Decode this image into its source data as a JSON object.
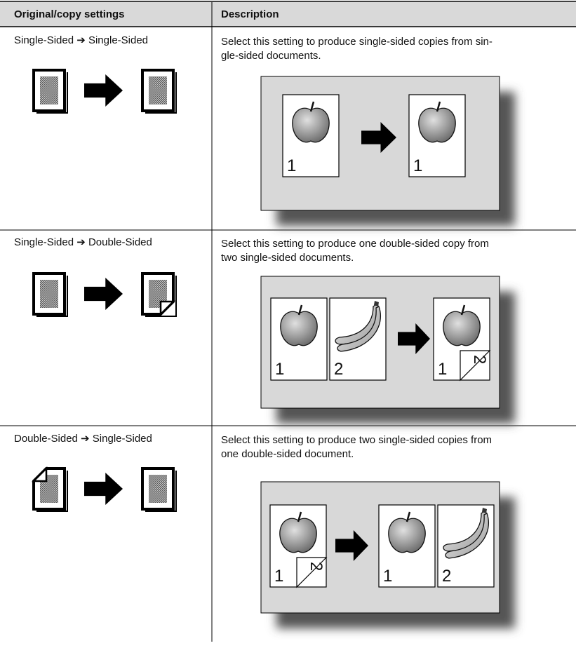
{
  "header": {
    "col1": "Original/copy settings",
    "col2": "Description"
  },
  "rows": [
    {
      "setting": "Single-Sided ➔ Single-Sided",
      "description": [
        "Select this setting to produce single-sided copies from sin-",
        "gle-sided documents."
      ],
      "page_numbers": [
        "1",
        "1"
      ]
    },
    {
      "setting": "Single-Sided ➔ Double-Sided",
      "description": [
        "Select this setting to produce one double-sided copy from",
        "two single-sided documents."
      ],
      "page_numbers": [
        "1",
        "2",
        "1",
        "2"
      ]
    },
    {
      "setting": "Double-Sided ➔ Single-Sided",
      "description": [
        "Select this setting to produce two single-sided copies from",
        "one double-sided document."
      ],
      "page_numbers": [
        "1",
        "2",
        "1",
        "2"
      ]
    }
  ]
}
